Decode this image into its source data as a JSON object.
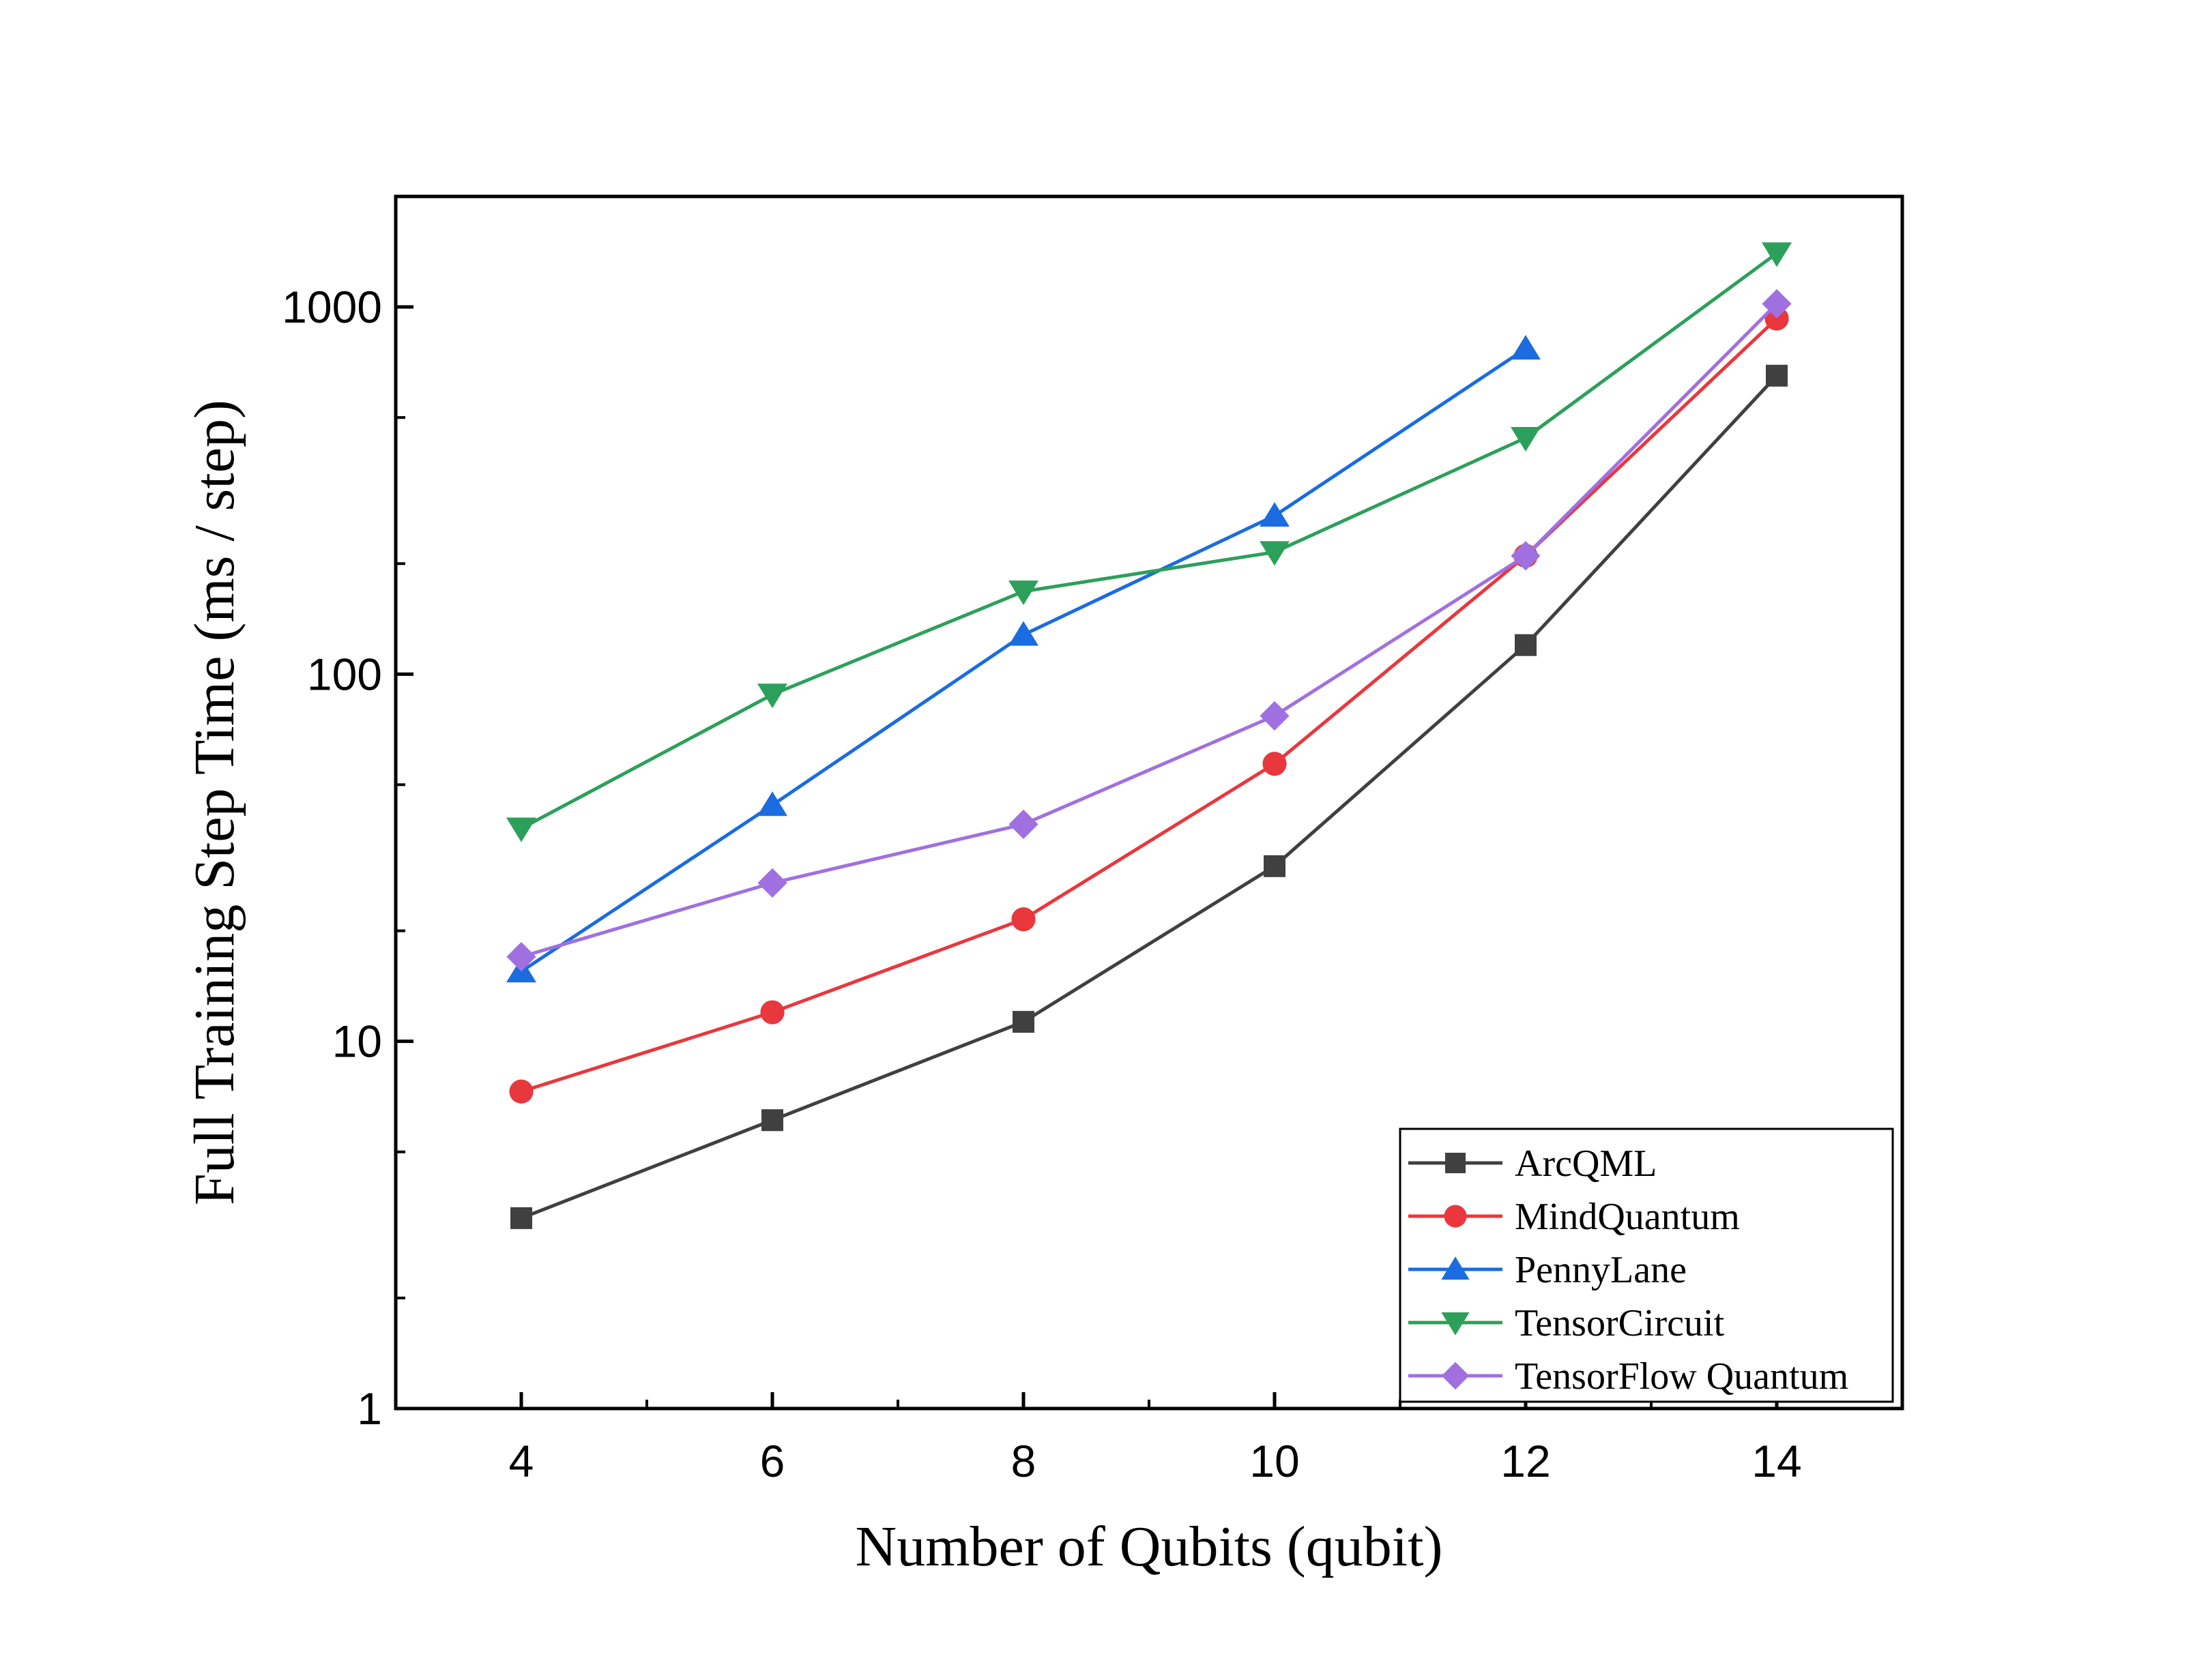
{
  "chart_data": {
    "type": "line",
    "title": "",
    "xlabel": "Number of Qubits (qubit)",
    "ylabel": "Full Training Step Time (ms / step)",
    "x": [
      4,
      6,
      8,
      10,
      12,
      14
    ],
    "xlim": [
      3,
      15
    ],
    "x_ticks": [
      "4",
      "6",
      "8",
      "10",
      "12",
      "14"
    ],
    "ylim": [
      1,
      2000
    ],
    "y_scale": "log",
    "y_ticks": [
      "1",
      "10",
      "100",
      "1000"
    ],
    "grid": false,
    "legend_position": "bottom-right",
    "series": [
      {
        "name": "ArcQML",
        "color": "#404040",
        "marker": "square",
        "values": [
          3.3,
          6.1,
          11.3,
          30,
          120,
          650
        ]
      },
      {
        "name": "MindQuantum",
        "color": "#e8383d",
        "marker": "circle",
        "values": [
          7.3,
          12,
          21.5,
          57,
          210,
          930
        ]
      },
      {
        "name": "PennyLane",
        "color": "#1a6ce0",
        "marker": "triangle-up",
        "values": [
          15.5,
          44,
          128,
          270,
          770,
          null
        ]
      },
      {
        "name": "TensorCircuit",
        "color": "#2ca05a",
        "marker": "triangle-down",
        "values": [
          38,
          88,
          168,
          215,
          440,
          1400
        ]
      },
      {
        "name": "TensorFlow Quantum",
        "color": "#a070e0",
        "marker": "diamond",
        "values": [
          17,
          27,
          39,
          77,
          210,
          1020
        ]
      }
    ]
  }
}
